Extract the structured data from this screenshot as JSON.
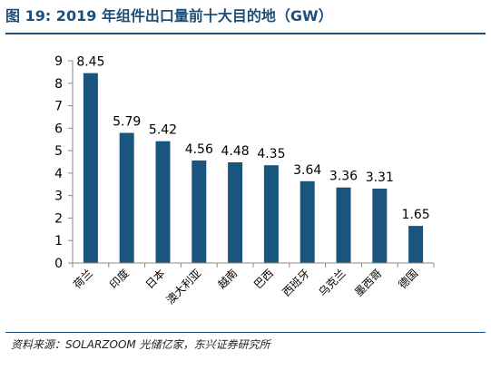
{
  "title": "图 19: 2019 年组件出口量前十大目的地（GW）",
  "source": "资料来源：SOLARZOOM 光储亿家，东兴证券研究所",
  "colors": {
    "bar": "#1a557d",
    "title": "#1f4e79",
    "axis": "#888888"
  },
  "chart_data": {
    "type": "bar",
    "title": "",
    "xlabel": "",
    "ylabel": "",
    "ylim": [
      0,
      9
    ],
    "yticks": [
      0,
      1,
      2,
      3,
      4,
      5,
      6,
      7,
      8,
      9
    ],
    "grid": false,
    "categories": [
      "荷兰",
      "印度",
      "日本",
      "澳大利亚",
      "越南",
      "巴西",
      "西班牙",
      "乌克兰",
      "墨西哥",
      "德国"
    ],
    "values": [
      8.45,
      5.79,
      5.42,
      4.56,
      4.48,
      4.35,
      3.64,
      3.36,
      3.31,
      1.65
    ],
    "data_labels": [
      "8.45",
      "5.79",
      "5.42",
      "4.56",
      "4.48",
      "4.35",
      "3.64",
      "3.36",
      "3.31",
      "1.65"
    ]
  }
}
